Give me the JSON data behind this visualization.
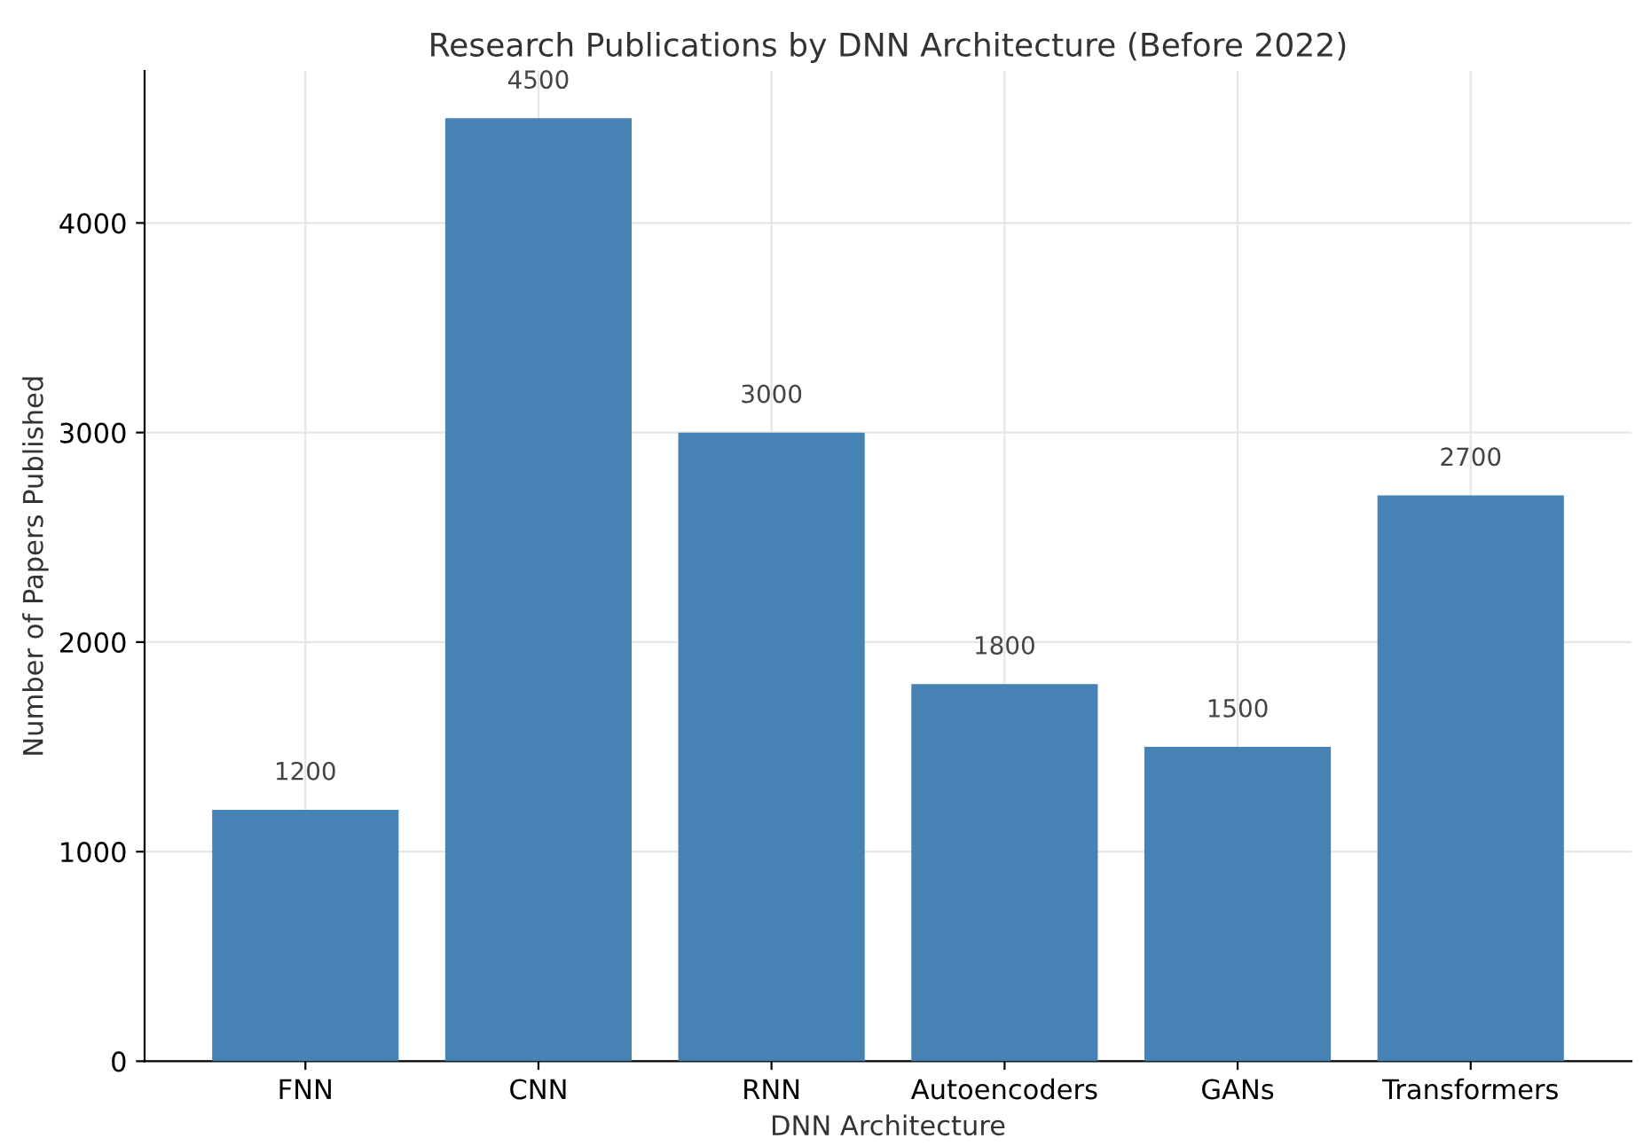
{
  "chart_data": {
    "type": "bar",
    "title": "Research Publications by DNN Architecture (Before 2022)",
    "xlabel": "DNN Architecture",
    "ylabel": "Number of Papers Published",
    "categories": [
      "FNN",
      "CNN",
      "RNN",
      "Autoencoders",
      "GANs",
      "Transformers"
    ],
    "values": [
      1200,
      4500,
      3000,
      1800,
      1500,
      2700
    ],
    "color": "#4682b4",
    "ylim": [
      0,
      4725
    ],
    "yticks": [
      0,
      1000,
      2000,
      3000,
      4000
    ],
    "grid": true,
    "data_labels": true
  }
}
